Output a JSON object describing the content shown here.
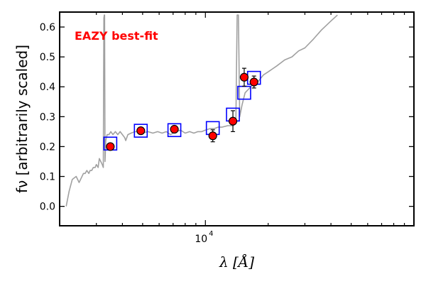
{
  "chart_data": {
    "type": "scatter",
    "xscale": "log",
    "xlim": [
      2000,
      100000
    ],
    "ylim": [
      -0.065,
      0.65
    ],
    "xlabel": "λ [Å]",
    "ylabel": "fν [arbitrarily scaled]",
    "grid": false,
    "yticks": [
      0.0,
      0.1,
      0.2,
      0.3,
      0.4,
      0.5,
      0.6
    ],
    "ytick_labels": [
      "0.0",
      "0.1",
      "0.2",
      "0.3",
      "0.4",
      "0.5",
      "0.6"
    ],
    "xtick_labels": [
      {
        "value": 10000,
        "base": "10",
        "exponent": "4"
      }
    ],
    "annotation": {
      "text": "EAZY best-fit",
      "color": "#ff0000"
    },
    "colors": {
      "sed": "#a0a0a0",
      "model": "#0000ff",
      "observed_fill": "#ff0000",
      "observed_edge": "#000000"
    },
    "series": [
      {
        "kind": "sed_line",
        "x": [
          2150,
          2220,
          2300,
          2400,
          2480,
          2520,
          2600,
          2650,
          2700,
          2760,
          2800,
          2850,
          2900,
          2960,
          3000,
          3060,
          3100,
          3150,
          3200,
          3240,
          3260,
          3275,
          3285,
          3300,
          3330,
          3380,
          3450,
          3520,
          3600,
          3700,
          3800,
          3900,
          4000,
          4100,
          4150,
          4250,
          4400,
          4600,
          4800,
          5000,
          5300,
          5600,
          5900,
          6200,
          6500,
          6800,
          7200,
          7600,
          8000,
          8400,
          8800,
          9200,
          9600,
          10000,
          10500,
          11000,
          11500,
          12000,
          12800,
          13600,
          14000,
          14200,
          14400,
          14600,
          15000,
          15500,
          16000,
          16500,
          17000,
          18000,
          19000,
          20000,
          22000,
          24000,
          26000,
          28000,
          30000,
          33000,
          36000,
          40000,
          43000
        ],
        "y": [
          0.0,
          0.05,
          0.09,
          0.1,
          0.08,
          0.09,
          0.11,
          0.11,
          0.12,
          0.11,
          0.12,
          0.12,
          0.13,
          0.13,
          0.14,
          0.13,
          0.16,
          0.15,
          0.14,
          0.13,
          0.63,
          0.64,
          0.64,
          0.15,
          0.22,
          0.24,
          0.24,
          0.25,
          0.24,
          0.25,
          0.24,
          0.25,
          0.24,
          0.23,
          0.22,
          0.24,
          0.245,
          0.25,
          0.25,
          0.245,
          0.25,
          0.245,
          0.25,
          0.245,
          0.25,
          0.24,
          0.25,
          0.255,
          0.245,
          0.25,
          0.245,
          0.25,
          0.25,
          0.255,
          0.26,
          0.26,
          0.265,
          0.265,
          0.27,
          0.27,
          0.28,
          0.64,
          0.64,
          0.3,
          0.34,
          0.38,
          0.39,
          0.4,
          0.41,
          0.42,
          0.44,
          0.45,
          0.47,
          0.49,
          0.5,
          0.52,
          0.53,
          0.56,
          0.59,
          0.62,
          0.64
        ]
      },
      {
        "kind": "model_photometry",
        "x": [
          3500,
          4900,
          7100,
          10850,
          13550,
          15350,
          17100
        ],
        "y": [
          0.21,
          0.253,
          0.255,
          0.262,
          0.307,
          0.38,
          0.43
        ]
      },
      {
        "kind": "observed_photometry",
        "x": [
          3500,
          4900,
          7100,
          10850,
          13550,
          15350,
          17100
        ],
        "y": [
          0.2,
          0.253,
          0.258,
          0.236,
          0.285,
          0.432,
          0.416
        ],
        "yerr": [
          0.008,
          0.008,
          0.008,
          0.02,
          0.035,
          0.03,
          0.02
        ]
      }
    ]
  }
}
